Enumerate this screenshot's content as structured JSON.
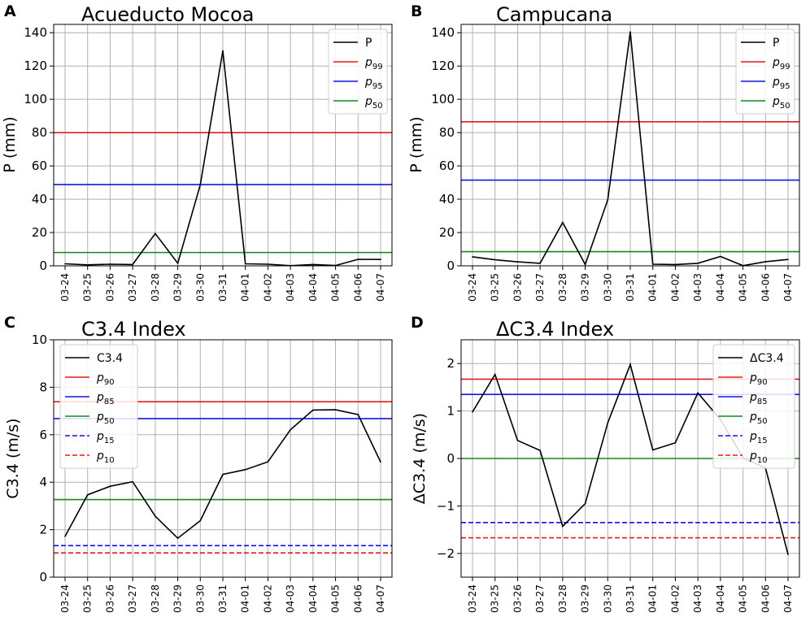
{
  "chart_data": [
    {
      "panel": "A",
      "type": "line",
      "title": "Acueducto Mocoa",
      "xlabel": "",
      "ylabel": "P (mm)",
      "ylim": [
        0,
        145
      ],
      "yticks": [
        0,
        20,
        40,
        60,
        80,
        100,
        120,
        140
      ],
      "categories": [
        "03-24",
        "03-25",
        "03-26",
        "03-27",
        "03-28",
        "03-29",
        "03-30",
        "03-31",
        "04-01",
        "04-02",
        "04-03",
        "04-04",
        "04-05",
        "04-06",
        "04-07"
      ],
      "grid": true,
      "legend_position": "top-right",
      "series": [
        {
          "name": "P",
          "color": "#000000",
          "dash": false,
          "values": [
            1.2,
            0.6,
            1.0,
            0.8,
            19.4,
            1.5,
            48.7,
            129.2,
            1.2,
            1.0,
            0.1,
            0.8,
            0.2,
            3.9,
            3.8
          ]
        }
      ],
      "hlines": [
        {
          "base": "p",
          "sub": "99",
          "color": "#e41a1c",
          "dash": false,
          "value": 80.0
        },
        {
          "base": "p",
          "sub": "95",
          "color": "#1414e6",
          "dash": false,
          "value": 48.8
        },
        {
          "base": "p",
          "sub": "50",
          "color": "#118a1a",
          "dash": false,
          "value": 8.0
        }
      ]
    },
    {
      "panel": "B",
      "type": "line",
      "title": "Campucana",
      "xlabel": "",
      "ylabel": "P (mm)",
      "ylim": [
        0,
        145
      ],
      "yticks": [
        0,
        20,
        40,
        60,
        80,
        100,
        120,
        140
      ],
      "categories": [
        "03-24",
        "03-25",
        "03-26",
        "03-27",
        "03-28",
        "03-29",
        "03-30",
        "03-31",
        "04-01",
        "04-02",
        "04-03",
        "04-04",
        "04-05",
        "04-06",
        "04-07"
      ],
      "grid": true,
      "legend_position": "top-right",
      "series": [
        {
          "name": "P",
          "color": "#000000",
          "dash": false,
          "values": [
            5.4,
            3.6,
            2.4,
            1.5,
            26.0,
            0.8,
            39.6,
            140.5,
            1.0,
            0.8,
            1.5,
            5.6,
            0.1,
            2.5,
            3.8
          ]
        }
      ],
      "hlines": [
        {
          "base": "p",
          "sub": "99",
          "color": "#e41a1c",
          "dash": false,
          "value": 86.5
        },
        {
          "base": "p",
          "sub": "95",
          "color": "#1414e6",
          "dash": false,
          "value": 51.5
        },
        {
          "base": "p",
          "sub": "50",
          "color": "#118a1a",
          "dash": false,
          "value": 8.5
        }
      ]
    },
    {
      "panel": "C",
      "type": "line",
      "title": "C3.4 Index",
      "xlabel": "",
      "ylabel": "C3.4 (m/s)",
      "ylim": [
        0,
        10
      ],
      "yticks": [
        0,
        2,
        4,
        6,
        8,
        10
      ],
      "categories": [
        "03-24",
        "03-25",
        "03-26",
        "03-27",
        "03-28",
        "03-29",
        "03-30",
        "03-31",
        "04-01",
        "04-02",
        "04-03",
        "04-04",
        "04-05",
        "04-06",
        "04-07"
      ],
      "grid": true,
      "legend_position": "top-left",
      "series": [
        {
          "name": "C3.4",
          "color": "#000000",
          "dash": false,
          "values": [
            1.72,
            3.47,
            3.83,
            4.02,
            2.57,
            1.64,
            2.38,
            4.33,
            4.53,
            4.86,
            6.21,
            7.04,
            7.05,
            6.85,
            4.85
          ]
        }
      ],
      "hlines": [
        {
          "base": "p",
          "sub": "90",
          "color": "#e41a1c",
          "dash": false,
          "value": 7.39
        },
        {
          "base": "p",
          "sub": "85",
          "color": "#1414e6",
          "dash": false,
          "value": 6.68
        },
        {
          "base": "p",
          "sub": "50",
          "color": "#118a1a",
          "dash": false,
          "value": 3.27
        },
        {
          "base": "p",
          "sub": "15",
          "color": "#1414e6",
          "dash": true,
          "value": 1.33
        },
        {
          "base": "p",
          "sub": "10",
          "color": "#e41a1c",
          "dash": true,
          "value": 1.02
        }
      ]
    },
    {
      "panel": "D",
      "type": "line",
      "title": "ΔC3.4 Index",
      "xlabel": "",
      "ylabel": "ΔC3.4 (m/s)",
      "ylim": [
        -2.5,
        2.5
      ],
      "yticks": [
        -2,
        -1,
        0,
        1,
        2
      ],
      "categories": [
        "03-24",
        "03-25",
        "03-26",
        "03-27",
        "03-28",
        "03-29",
        "03-30",
        "03-31",
        "04-01",
        "04-02",
        "04-03",
        "04-04",
        "04-05",
        "04-06",
        "04-07"
      ],
      "grid": true,
      "legend_position": "top-right",
      "series": [
        {
          "name": "ΔC3.4",
          "color": "#000000",
          "dash": false,
          "values": [
            0.98,
            1.77,
            0.38,
            0.17,
            -1.43,
            -0.95,
            0.75,
            1.98,
            0.18,
            0.33,
            1.38,
            0.82,
            0.01,
            -0.2,
            -2.02
          ]
        }
      ],
      "hlines": [
        {
          "base": "p",
          "sub": "90",
          "color": "#e41a1c",
          "dash": false,
          "value": 1.67
        },
        {
          "base": "p",
          "sub": "85",
          "color": "#1414e6",
          "dash": false,
          "value": 1.35
        },
        {
          "base": "p",
          "sub": "50",
          "color": "#118a1a",
          "dash": false,
          "value": 0.0
        },
        {
          "base": "p",
          "sub": "15",
          "color": "#1414e6",
          "dash": true,
          "value": -1.35
        },
        {
          "base": "p",
          "sub": "10",
          "color": "#e41a1c",
          "dash": true,
          "value": -1.67
        }
      ]
    }
  ]
}
